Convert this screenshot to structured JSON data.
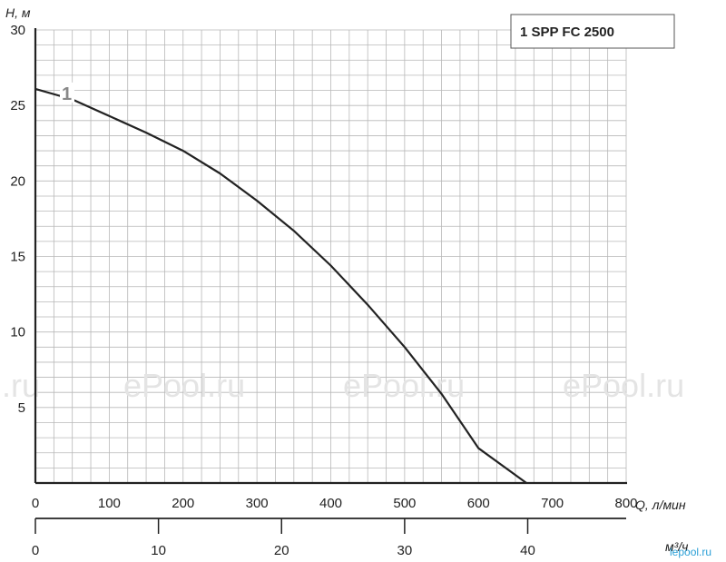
{
  "chart_data": {
    "type": "line",
    "ylabel": "H, м",
    "xlabel": "Q, л/мин",
    "xlabel_secondary": "м³/ч",
    "xlim": [
      0,
      800
    ],
    "ylim": [
      0,
      30
    ],
    "secondary_xlim": [
      0,
      48
    ],
    "x_ticks": [
      "0",
      "100",
      "200",
      "300",
      "400",
      "500",
      "600",
      "700",
      "800"
    ],
    "y_ticks": [
      "5",
      "10",
      "15",
      "20",
      "25",
      "30"
    ],
    "secondary_x_ticks": [
      "0",
      "10",
      "20",
      "30",
      "40"
    ],
    "grid": true,
    "legend_position": "top-right",
    "series": [
      {
        "name": "1 SPP FC 2500",
        "label": "1",
        "color": "#222222",
        "points": [
          [
            0,
            26.1
          ],
          [
            50,
            25.4
          ],
          [
            100,
            24.3
          ],
          [
            150,
            23.2
          ],
          [
            200,
            22.0
          ],
          [
            250,
            20.5
          ],
          [
            300,
            18.7
          ],
          [
            350,
            16.7
          ],
          [
            400,
            14.4
          ],
          [
            450,
            11.8
          ],
          [
            500,
            9.0
          ],
          [
            550,
            5.9
          ],
          [
            600,
            2.3
          ],
          [
            665,
            0
          ]
        ]
      }
    ],
    "watermarks": [
      "l.ru",
      "ePool.ru",
      "ePool.ru",
      "ePool.ru"
    ],
    "corner_logo": "lepool.ru"
  }
}
